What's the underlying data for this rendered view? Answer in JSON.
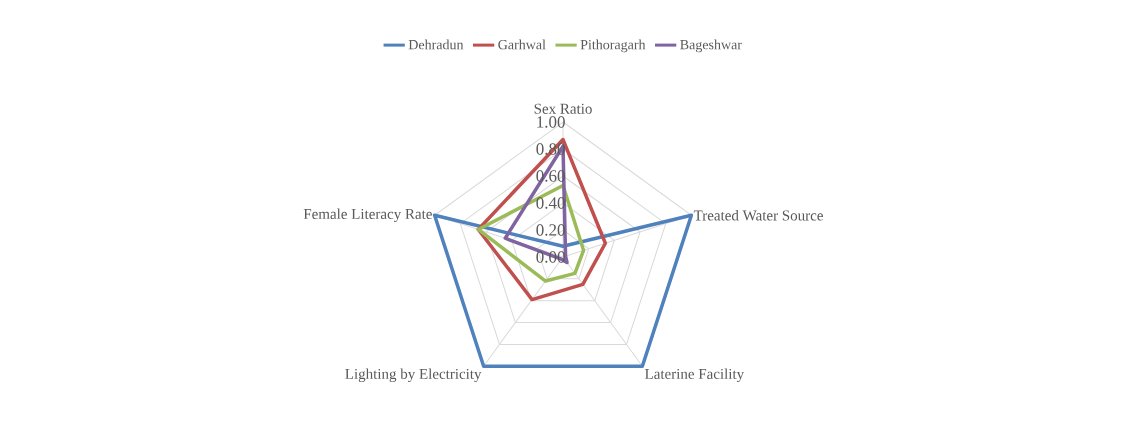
{
  "chart_data": {
    "type": "radar",
    "categories": [
      "Sex Ratio",
      "Treated Water Source",
      "Laterine Facility",
      "Lighting by Electricity",
      "Female Literacy Rate"
    ],
    "series": [
      {
        "name": "Dehradun",
        "color": "#4f81bd",
        "values": [
          0.08,
          1.0,
          1.0,
          1.0,
          1.0
        ]
      },
      {
        "name": "Garhwal",
        "color": "#c0504d",
        "values": [
          0.87,
          0.33,
          0.25,
          0.39,
          0.66
        ]
      },
      {
        "name": "Pithoragarh",
        "color": "#9bbb59",
        "values": [
          0.53,
          0.16,
          0.15,
          0.22,
          0.66
        ]
      },
      {
        "name": "Bageshwar",
        "color": "#8064a2",
        "values": [
          0.82,
          0.02,
          0.05,
          0.02,
          0.45
        ]
      }
    ],
    "ylim": [
      0,
      1
    ],
    "yticks": [
      {
        "value": 0,
        "label": "0.00"
      },
      {
        "value": 0.2,
        "label": "0.20"
      },
      {
        "value": 0.4,
        "label": "0.40"
      },
      {
        "value": 0.6,
        "label": "0.60"
      },
      {
        "value": 0.8,
        "label": "0.80"
      },
      {
        "value": 1,
        "label": "1.00"
      }
    ],
    "grid": true,
    "legend": "top"
  }
}
